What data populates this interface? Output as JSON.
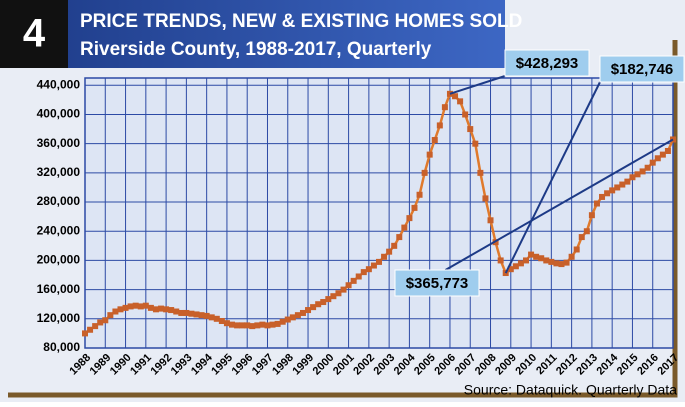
{
  "chart_data": {
    "type": "line",
    "badge": "4",
    "title": "PRICE TRENDS, NEW & EXISTING HOMES SOLD",
    "subtitle": "Riverside County, 1988-2017, Quarterly",
    "source": "Source:  Dataquick. Quarterly Data",
    "xlim": [
      1988,
      2017
    ],
    "xticks": [
      1988,
      1989,
      1990,
      1991,
      1992,
      1993,
      1994,
      1995,
      1996,
      1997,
      1998,
      1999,
      2000,
      2001,
      2002,
      2003,
      2004,
      2005,
      2006,
      2007,
      2008,
      2009,
      2010,
      2011,
      2012,
      2013,
      2014,
      2015,
      2016,
      2017
    ],
    "ylim": [
      80000,
      450000
    ],
    "yticks": [
      {
        "value": 80000,
        "label": "80,000"
      },
      {
        "value": 120000,
        "label": "120,000"
      },
      {
        "value": 160000,
        "label": "160,000"
      },
      {
        "value": 200000,
        "label": "200,000"
      },
      {
        "value": 240000,
        "label": "240,000"
      },
      {
        "value": 280000,
        "label": "280,000"
      },
      {
        "value": 320000,
        "label": "320,000"
      },
      {
        "value": 360000,
        "label": "360,000"
      },
      {
        "value": 400000,
        "label": "400,000"
      },
      {
        "value": 440000,
        "label": "440,000"
      }
    ],
    "grid": true,
    "color": "#e07a2c",
    "x": [
      1988,
      1988.25,
      1988.5,
      1988.75,
      1989,
      1989.25,
      1989.5,
      1989.75,
      1990,
      1990.25,
      1990.5,
      1990.75,
      1991,
      1991.25,
      1991.5,
      1991.75,
      1992,
      1992.25,
      1992.5,
      1992.75,
      1993,
      1993.25,
      1993.5,
      1993.75,
      1994,
      1994.25,
      1994.5,
      1994.75,
      1995,
      1995.25,
      1995.5,
      1995.75,
      1996,
      1996.25,
      1996.5,
      1996.75,
      1997,
      1997.25,
      1997.5,
      1997.75,
      1998,
      1998.25,
      1998.5,
      1998.75,
      1999,
      1999.25,
      1999.5,
      1999.75,
      2000,
      2000.25,
      2000.5,
      2000.75,
      2001,
      2001.25,
      2001.5,
      2001.75,
      2002,
      2002.25,
      2002.5,
      2002.75,
      2003,
      2003.25,
      2003.5,
      2003.75,
      2004,
      2004.25,
      2004.5,
      2004.75,
      2005,
      2005.25,
      2005.5,
      2005.75,
      2006,
      2006.25,
      2006.5,
      2006.75,
      2007,
      2007.25,
      2007.5,
      2007.75,
      2008,
      2008.25,
      2008.5,
      2008.75,
      2009,
      2009.25,
      2009.5,
      2009.75,
      2010,
      2010.25,
      2010.5,
      2010.75,
      2011,
      2011.25,
      2011.5,
      2011.75,
      2012,
      2012.25,
      2012.5,
      2012.75,
      2013,
      2013.25,
      2013.5,
      2013.75,
      2014,
      2014.25,
      2014.5,
      2014.75,
      2015,
      2015.25,
      2015.5,
      2015.75,
      2016,
      2016.25,
      2016.5,
      2016.75,
      2017
    ],
    "values": [
      100000,
      105000,
      110000,
      115000,
      118000,
      125000,
      130000,
      133000,
      135000,
      137000,
      138000,
      137000,
      138000,
      135000,
      133000,
      134000,
      133000,
      132000,
      130000,
      128000,
      128000,
      127000,
      126000,
      125000,
      124000,
      122000,
      120000,
      117000,
      114000,
      112000,
      111000,
      111000,
      111000,
      110000,
      111000,
      112000,
      111000,
      112000,
      113000,
      116000,
      119000,
      122000,
      125000,
      128000,
      132000,
      136000,
      140000,
      143000,
      147000,
      151000,
      155000,
      160000,
      166000,
      172000,
      178000,
      184000,
      188000,
      193000,
      198000,
      205000,
      212000,
      220000,
      232000,
      245000,
      258000,
      272000,
      290000,
      320000,
      345000,
      365000,
      385000,
      410000,
      428293,
      425000,
      418000,
      400000,
      380000,
      360000,
      320000,
      285000,
      255000,
      225000,
      200000,
      182746,
      188000,
      192000,
      196000,
      200000,
      208000,
      205000,
      203000,
      200000,
      198000,
      196000,
      195000,
      197000,
      205000,
      215000,
      232000,
      240000,
      262000,
      278000,
      287000,
      292000,
      296000,
      300000,
      304000,
      308000,
      314000,
      318000,
      322000,
      327000,
      334000,
      340000,
      345000,
      350000,
      365773
    ],
    "value_labels": [
      null,
      null,
      null,
      null,
      null,
      null,
      null,
      null,
      null,
      null,
      null,
      null,
      null,
      null,
      null,
      null,
      null,
      null,
      null,
      null,
      null,
      null,
      null,
      null,
      null,
      null,
      null,
      null,
      null,
      null,
      null,
      null,
      null,
      null,
      null,
      null,
      null,
      null,
      null,
      null,
      null,
      null,
      null,
      null,
      null,
      null,
      null,
      null,
      null,
      null,
      null,
      null,
      null,
      null,
      null,
      null,
      null,
      null,
      null,
      null,
      null,
      null,
      null,
      null,
      null,
      null,
      null,
      null,
      null,
      null,
      null,
      null,
      "$428,293",
      null,
      null,
      null,
      null,
      null,
      null,
      null,
      null,
      null,
      null,
      "$182,746",
      null,
      null,
      null,
      null,
      null,
      null,
      null,
      null,
      null,
      null,
      null,
      null,
      null,
      null,
      null,
      null,
      null,
      null,
      null,
      null,
      null,
      null,
      null,
      null,
      null,
      null,
      null,
      null,
      null,
      null,
      null,
      null,
      "$365,773"
    ]
  }
}
